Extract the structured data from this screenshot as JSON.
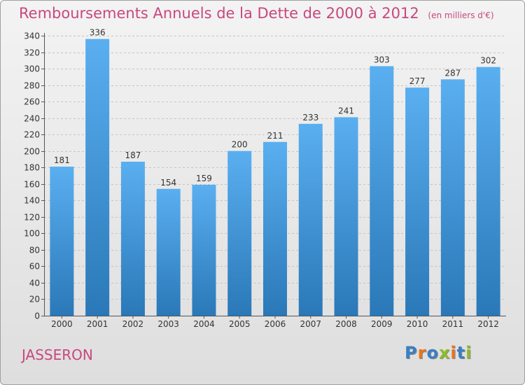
{
  "chart_data": {
    "type": "bar",
    "title": "Remboursements Annuels de la Dette de 2000 à 2012",
    "unit_note": "(en milliers d'€)",
    "categories": [
      "2000",
      "2001",
      "2002",
      "2003",
      "2004",
      "2005",
      "2006",
      "2007",
      "2008",
      "2009",
      "2010",
      "2011",
      "2012"
    ],
    "values": [
      181,
      336,
      187,
      154,
      159,
      200,
      211,
      233,
      241,
      303,
      277,
      287,
      302
    ],
    "ylim": [
      0,
      340
    ],
    "ytick_step": 20,
    "grid": true,
    "xlabel": "",
    "ylabel": ""
  },
  "commune": "JASSERON",
  "logo": {
    "letters": [
      "P",
      "r",
      "o",
      "x",
      "i",
      "t",
      "i"
    ]
  },
  "colors": {
    "title": "#c8477e",
    "bar_top": "#5aaff0",
    "bar_bottom": "#2a78b8",
    "logo": [
      "#3b7fc4",
      "#e8741c",
      "#3b7fc4",
      "#8dbb2b",
      "#e8741c",
      "#3b7fc4",
      "#8dbb2b"
    ]
  }
}
